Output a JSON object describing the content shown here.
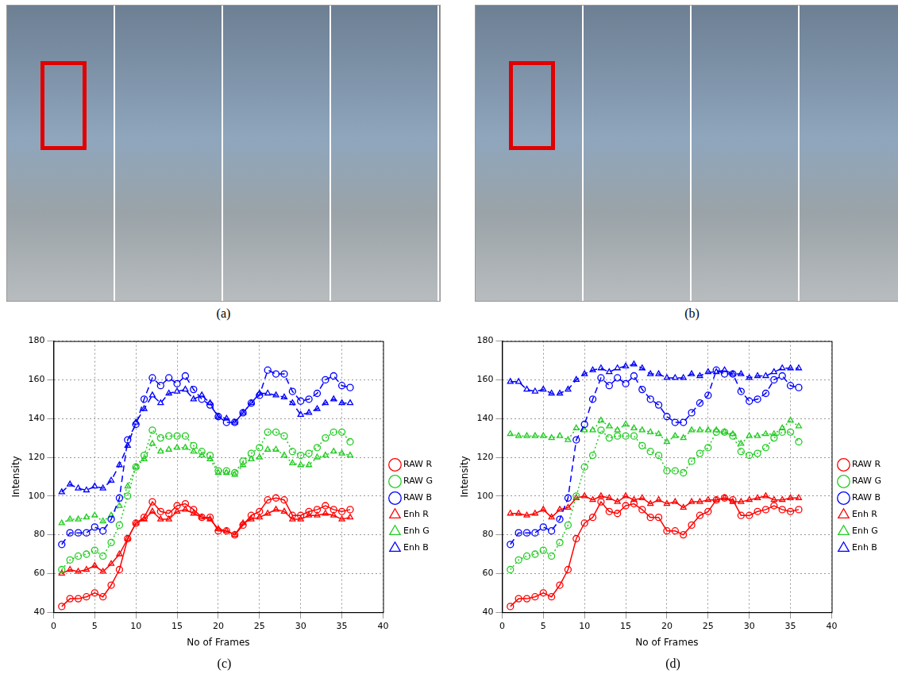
{
  "images": [
    {
      "label": "(a)"
    },
    {
      "label": "(b)"
    }
  ],
  "chart_data": [
    {
      "type": "line",
      "title": "(c)",
      "x_label": "No of Frames",
      "y_label": "Intensity",
      "x": [
        1,
        2,
        3,
        4,
        5,
        6,
        7,
        8,
        9,
        10,
        11,
        12,
        13,
        14,
        15,
        16,
        17,
        18,
        19,
        20,
        21,
        22,
        23,
        24,
        25,
        26,
        27,
        28,
        29,
        30,
        31,
        32,
        33,
        34,
        35,
        36
      ],
      "xlim": [
        0,
        40
      ],
      "xticks": [
        0,
        5,
        10,
        15,
        20,
        25,
        30,
        35,
        40
      ],
      "ylim": [
        40,
        180
      ],
      "yticks": [
        40,
        60,
        80,
        100,
        120,
        140,
        160,
        180
      ],
      "grid": true,
      "legend": "right",
      "series": [
        {
          "name": "RAW R",
          "color": "#ff0000",
          "marker": "circle",
          "line_style": "solid",
          "values": [
            43,
            47,
            47,
            48,
            50,
            48,
            54,
            62,
            78,
            86,
            89,
            97,
            92,
            91,
            95,
            96,
            93,
            89,
            89,
            82,
            82,
            80,
            85,
            90,
            92,
            98,
            99,
            98,
            90,
            90,
            92,
            93,
            95,
            93,
            92,
            93
          ]
        },
        {
          "name": "RAW G",
          "color": "#22cc22",
          "marker": "circle",
          "line_style": "dotted",
          "values": [
            62,
            67,
            69,
            70,
            72,
            69,
            76,
            85,
            100,
            115,
            121,
            134,
            130,
            131,
            131,
            131,
            126,
            123,
            121,
            113,
            113,
            112,
            118,
            122,
            125,
            133,
            133,
            131,
            123,
            121,
            122,
            125,
            130,
            133,
            133,
            128
          ]
        },
        {
          "name": "RAW B",
          "color": "#0000ff",
          "marker": "circle",
          "line_style": "dashed",
          "values": [
            75,
            81,
            81,
            81,
            84,
            82,
            88,
            99,
            129,
            137,
            150,
            161,
            157,
            161,
            158,
            162,
            155,
            150,
            147,
            141,
            138,
            138,
            143,
            148,
            152,
            165,
            163,
            163,
            154,
            149,
            150,
            153,
            160,
            162,
            157,
            156
          ]
        },
        {
          "name": "Enh R",
          "color": "#ff0000",
          "marker": "triangle",
          "line_style": "solid",
          "values": [
            60,
            62,
            61,
            62,
            64,
            61,
            65,
            70,
            78,
            86,
            88,
            92,
            88,
            88,
            92,
            93,
            91,
            89,
            88,
            83,
            82,
            80,
            86,
            88,
            89,
            91,
            93,
            92,
            88,
            88,
            90,
            90,
            91,
            90,
            88,
            89
          ]
        },
        {
          "name": "Enh G",
          "color": "#22cc22",
          "marker": "triangle",
          "line_style": "dotted",
          "values": [
            86,
            88,
            88,
            89,
            90,
            87,
            90,
            95,
            105,
            115,
            119,
            127,
            123,
            124,
            125,
            125,
            123,
            121,
            119,
            112,
            112,
            111,
            116,
            119,
            120,
            124,
            124,
            121,
            117,
            116,
            116,
            120,
            121,
            123,
            122,
            121
          ]
        },
        {
          "name": "Enh B",
          "color": "#0000ff",
          "marker": "triangle",
          "line_style": "dashed",
          "values": [
            102,
            106,
            104,
            103,
            105,
            104,
            108,
            116,
            126,
            138,
            145,
            152,
            148,
            153,
            154,
            155,
            150,
            152,
            148,
            141,
            140,
            138,
            143,
            148,
            153,
            153,
            152,
            151,
            148,
            142,
            143,
            145,
            148,
            150,
            148,
            148
          ]
        }
      ]
    },
    {
      "type": "line",
      "title": "(d)",
      "x_label": "No of Frames",
      "y_label": "Intensity",
      "x": [
        1,
        2,
        3,
        4,
        5,
        6,
        7,
        8,
        9,
        10,
        11,
        12,
        13,
        14,
        15,
        16,
        17,
        18,
        19,
        20,
        21,
        22,
        23,
        24,
        25,
        26,
        27,
        28,
        29,
        30,
        31,
        32,
        33,
        34,
        35,
        36
      ],
      "xlim": [
        0,
        40
      ],
      "xticks": [
        0,
        5,
        10,
        15,
        20,
        25,
        30,
        35,
        40
      ],
      "ylim": [
        40,
        180
      ],
      "yticks": [
        40,
        60,
        80,
        100,
        120,
        140,
        160,
        180
      ],
      "grid": true,
      "legend": "right",
      "series": [
        {
          "name": "RAW R",
          "color": "#ff0000",
          "marker": "circle",
          "line_style": "solid",
          "values": [
            43,
            47,
            47,
            48,
            50,
            48,
            54,
            62,
            78,
            86,
            89,
            97,
            92,
            91,
            95,
            96,
            93,
            89,
            89,
            82,
            82,
            80,
            85,
            90,
            92,
            98,
            99,
            98,
            90,
            90,
            92,
            93,
            95,
            93,
            92,
            93
          ]
        },
        {
          "name": "RAW G",
          "color": "#22cc22",
          "marker": "circle",
          "line_style": "dotted",
          "values": [
            62,
            67,
            69,
            70,
            72,
            69,
            76,
            85,
            100,
            115,
            121,
            134,
            130,
            131,
            131,
            131,
            126,
            123,
            121,
            113,
            113,
            112,
            118,
            122,
            125,
            133,
            133,
            131,
            123,
            121,
            122,
            125,
            130,
            133,
            133,
            128
          ]
        },
        {
          "name": "RAW B",
          "color": "#0000ff",
          "marker": "circle",
          "line_style": "dashed",
          "values": [
            75,
            81,
            81,
            81,
            84,
            82,
            88,
            99,
            129,
            137,
            150,
            161,
            157,
            161,
            158,
            162,
            155,
            150,
            147,
            141,
            138,
            138,
            143,
            148,
            152,
            165,
            163,
            163,
            154,
            149,
            150,
            153,
            160,
            162,
            157,
            156
          ]
        },
        {
          "name": "Enh R",
          "color": "#ff0000",
          "marker": "triangle",
          "line_style": "solid",
          "values": [
            91,
            91,
            90,
            91,
            93,
            89,
            93,
            94,
            99,
            100,
            98,
            100,
            99,
            97,
            100,
            98,
            99,
            96,
            98,
            96,
            97,
            94,
            97,
            97,
            98,
            98,
            99,
            97,
            97,
            98,
            99,
            100,
            98,
            98,
            99,
            99
          ]
        },
        {
          "name": "Enh G",
          "color": "#22cc22",
          "marker": "triangle",
          "line_style": "dotted",
          "values": [
            132,
            131,
            131,
            131,
            131,
            130,
            131,
            129,
            135,
            134,
            134,
            139,
            136,
            134,
            137,
            135,
            134,
            133,
            132,
            128,
            131,
            130,
            134,
            134,
            134,
            134,
            133,
            132,
            127,
            131,
            131,
            132,
            132,
            135,
            139,
            136
          ]
        },
        {
          "name": "Enh B",
          "color": "#0000ff",
          "marker": "triangle",
          "line_style": "dashed",
          "values": [
            159,
            159,
            155,
            154,
            155,
            153,
            153,
            155,
            160,
            163,
            165,
            166,
            164,
            166,
            167,
            168,
            166,
            163,
            163,
            161,
            161,
            161,
            163,
            162,
            164,
            164,
            165,
            163,
            163,
            161,
            162,
            162,
            164,
            166,
            166,
            166
          ]
        }
      ]
    }
  ]
}
